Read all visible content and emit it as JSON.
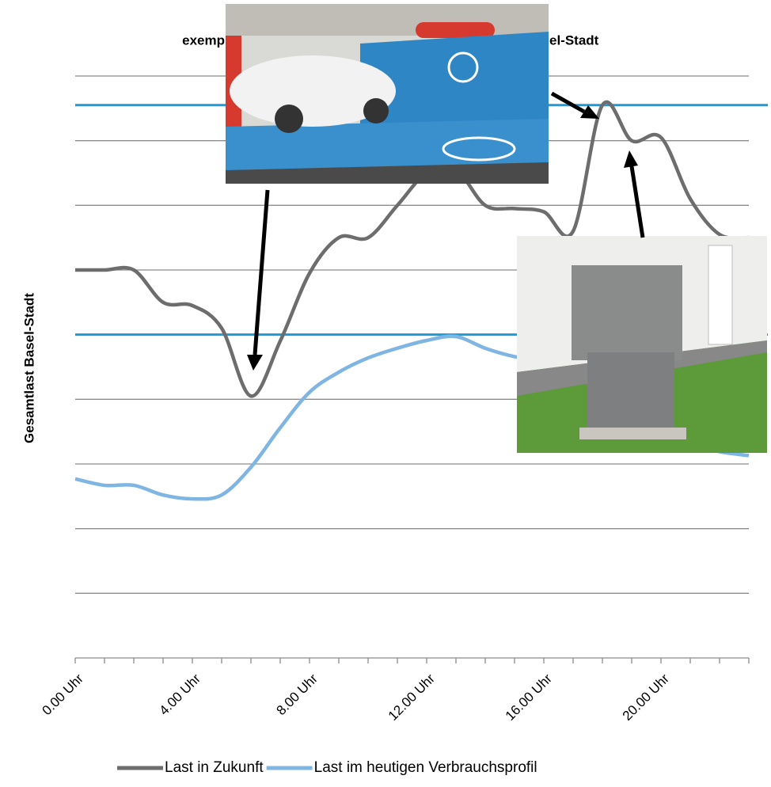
{
  "chart_data": {
    "type": "line",
    "title_parts": [
      "exemp",
      "el-Stadt"
    ],
    "y_label": "Gesamtlast Basel-Stadt",
    "categories": [
      "0.00 Uhr",
      null,
      null,
      null,
      "4.00 Uhr",
      null,
      null,
      null,
      "8.00 Uhr",
      null,
      null,
      null,
      "12.00 Uhr",
      null,
      null,
      null,
      "16.00 Uhr",
      null,
      null,
      null,
      "20.00 Uhr",
      null,
      null,
      null
    ],
    "series": [
      {
        "name": "Last in Zukunft",
        "color": "#6d6d6d",
        "values": [
          6.0,
          6.0,
          6.0,
          5.5,
          5.45,
          5.1,
          4.05,
          4.9,
          5.95,
          6.5,
          6.5,
          7.0,
          7.5,
          7.55,
          7.0,
          6.95,
          6.9,
          6.6,
          8.55,
          8.0,
          8.05,
          7.1,
          6.55,
          6.5
        ]
      },
      {
        "name": "Last im heutigen Verbrauchsprofil",
        "color": "#7fb5e3",
        "values": [
          2.77,
          2.67,
          2.67,
          2.52,
          2.46,
          2.52,
          2.95,
          3.56,
          4.11,
          4.42,
          4.64,
          4.79,
          4.91,
          4.97,
          4.79,
          4.66,
          4.6,
          4.42,
          4.05,
          3.68,
          3.44,
          3.32,
          3.19,
          3.13
        ]
      }
    ],
    "reference_lines": [
      8.55,
      5
    ],
    "reference_color": "#1f9ad6",
    "ylim": [
      0,
      9
    ],
    "yticks": [
      1,
      2,
      3,
      4,
      5,
      6,
      7,
      8,
      9
    ],
    "grid": true,
    "legend": "bottom"
  }
}
